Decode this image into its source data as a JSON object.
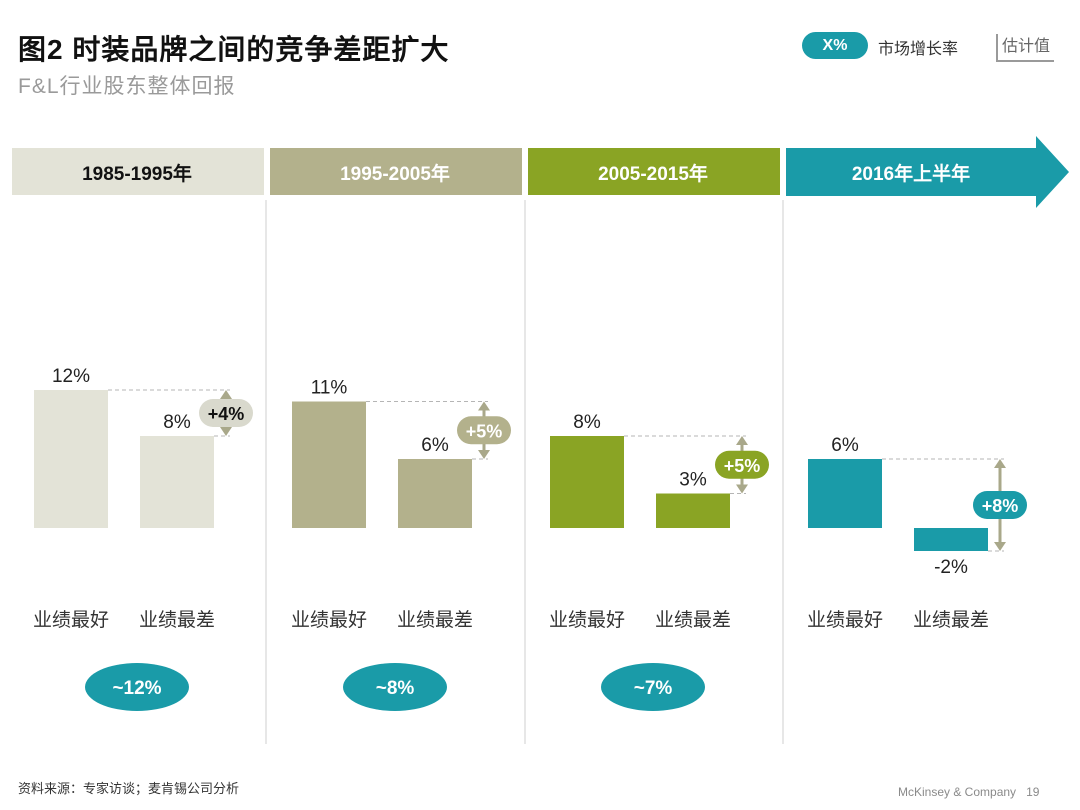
{
  "header": {
    "title": "图2 时装品牌之间的竞争差距扩大",
    "subtitle": "F&L行业股东整体回报"
  },
  "legend": {
    "pill_label": "X%",
    "pill_text": "市场增长率",
    "estimate_label": "估计值"
  },
  "footer": {
    "source": "资料来源：专家访谈；麦肯锡公司分析",
    "company": "McKinsey & Company",
    "page": "19"
  },
  "colors": {
    "p1": "#e3e3d7",
    "p2": "#b3b18c",
    "p3": "#8aa424",
    "p4": "#1a9ba8",
    "diff_p1": "#d9d9cd",
    "divider": "#cfcfcf"
  },
  "chart_data": {
    "type": "bar",
    "categories": [
      "业绩最好",
      "业绩最差"
    ],
    "panels": [
      {
        "period": "1985-1995年",
        "values": [
          12,
          8
        ],
        "value_labels": [
          "12%",
          "8%"
        ],
        "diff_label": "+4%",
        "market_growth": "~12%"
      },
      {
        "period": "1995-2005年",
        "values": [
          11,
          6
        ],
        "value_labels": [
          "11%",
          "6%"
        ],
        "diff_label": "+5%",
        "market_growth": "~8%"
      },
      {
        "period": "2005-2015年",
        "values": [
          8,
          3
        ],
        "value_labels": [
          "8%",
          "3%"
        ],
        "diff_label": "+5%",
        "market_growth": "~7%"
      },
      {
        "period": "2016年上半年",
        "values": [
          6,
          -2
        ],
        "value_labels": [
          "6%",
          "-2%"
        ],
        "diff_label": "+8%",
        "market_growth": ""
      }
    ]
  }
}
